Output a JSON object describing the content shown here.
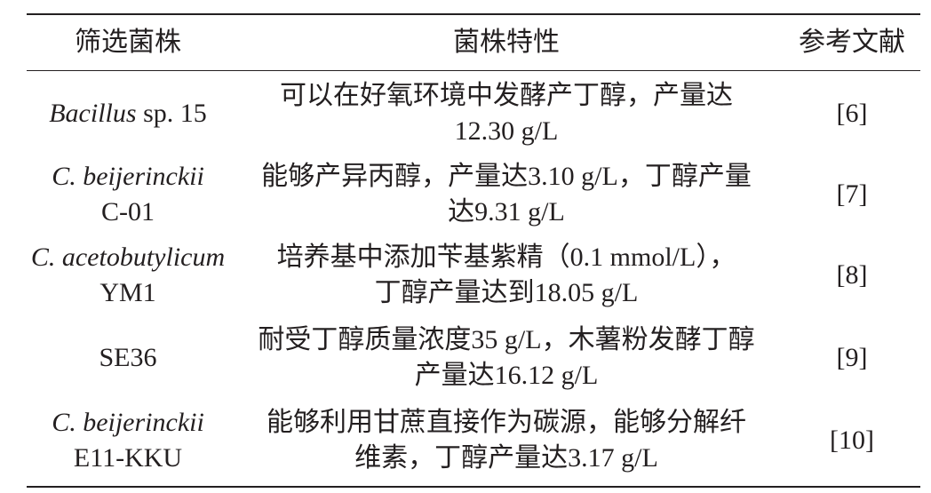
{
  "headers": [
    "筛选菌株",
    "菌株特性",
    "参考文献"
  ],
  "rows": [
    {
      "strain_italic": "Bacillus",
      "strain_rest": " sp. 15",
      "strain_line2": "",
      "traits": [
        "可以在好氧环境中发酵产丁醇，产量达",
        "12.30 g/L"
      ],
      "ref": "[6]"
    },
    {
      "strain_italic": "C. beijerinckii",
      "strain_rest": "",
      "strain_line2": "C-01",
      "traits": [
        "能够产异丙醇，产量达3.10 g/L，丁醇产量",
        "达9.31 g/L"
      ],
      "ref": "[7]"
    },
    {
      "strain_italic": "C. acetobutylicum",
      "strain_rest": "",
      "strain_line2": "YM1",
      "traits": [
        "培养基中添加苄基紫精（0.1 mmol/L），",
        "丁醇产量达到18.05 g/L"
      ],
      "ref": "[8]"
    },
    {
      "strain_italic": "",
      "strain_rest": "SE36",
      "strain_line2": "",
      "traits": [
        "耐受丁醇质量浓度35 g/L，木薯粉发酵丁醇",
        "产量达16.12 g/L"
      ],
      "ref": "[9]"
    },
    {
      "strain_italic": "C. beijerinckii",
      "strain_rest": "",
      "strain_line2": "E11-KKU",
      "traits": [
        "能够利用甘蔗直接作为碳源，能够分解纤",
        "维素，丁醇产量达3.17 g/L"
      ],
      "ref": "[10]"
    }
  ]
}
